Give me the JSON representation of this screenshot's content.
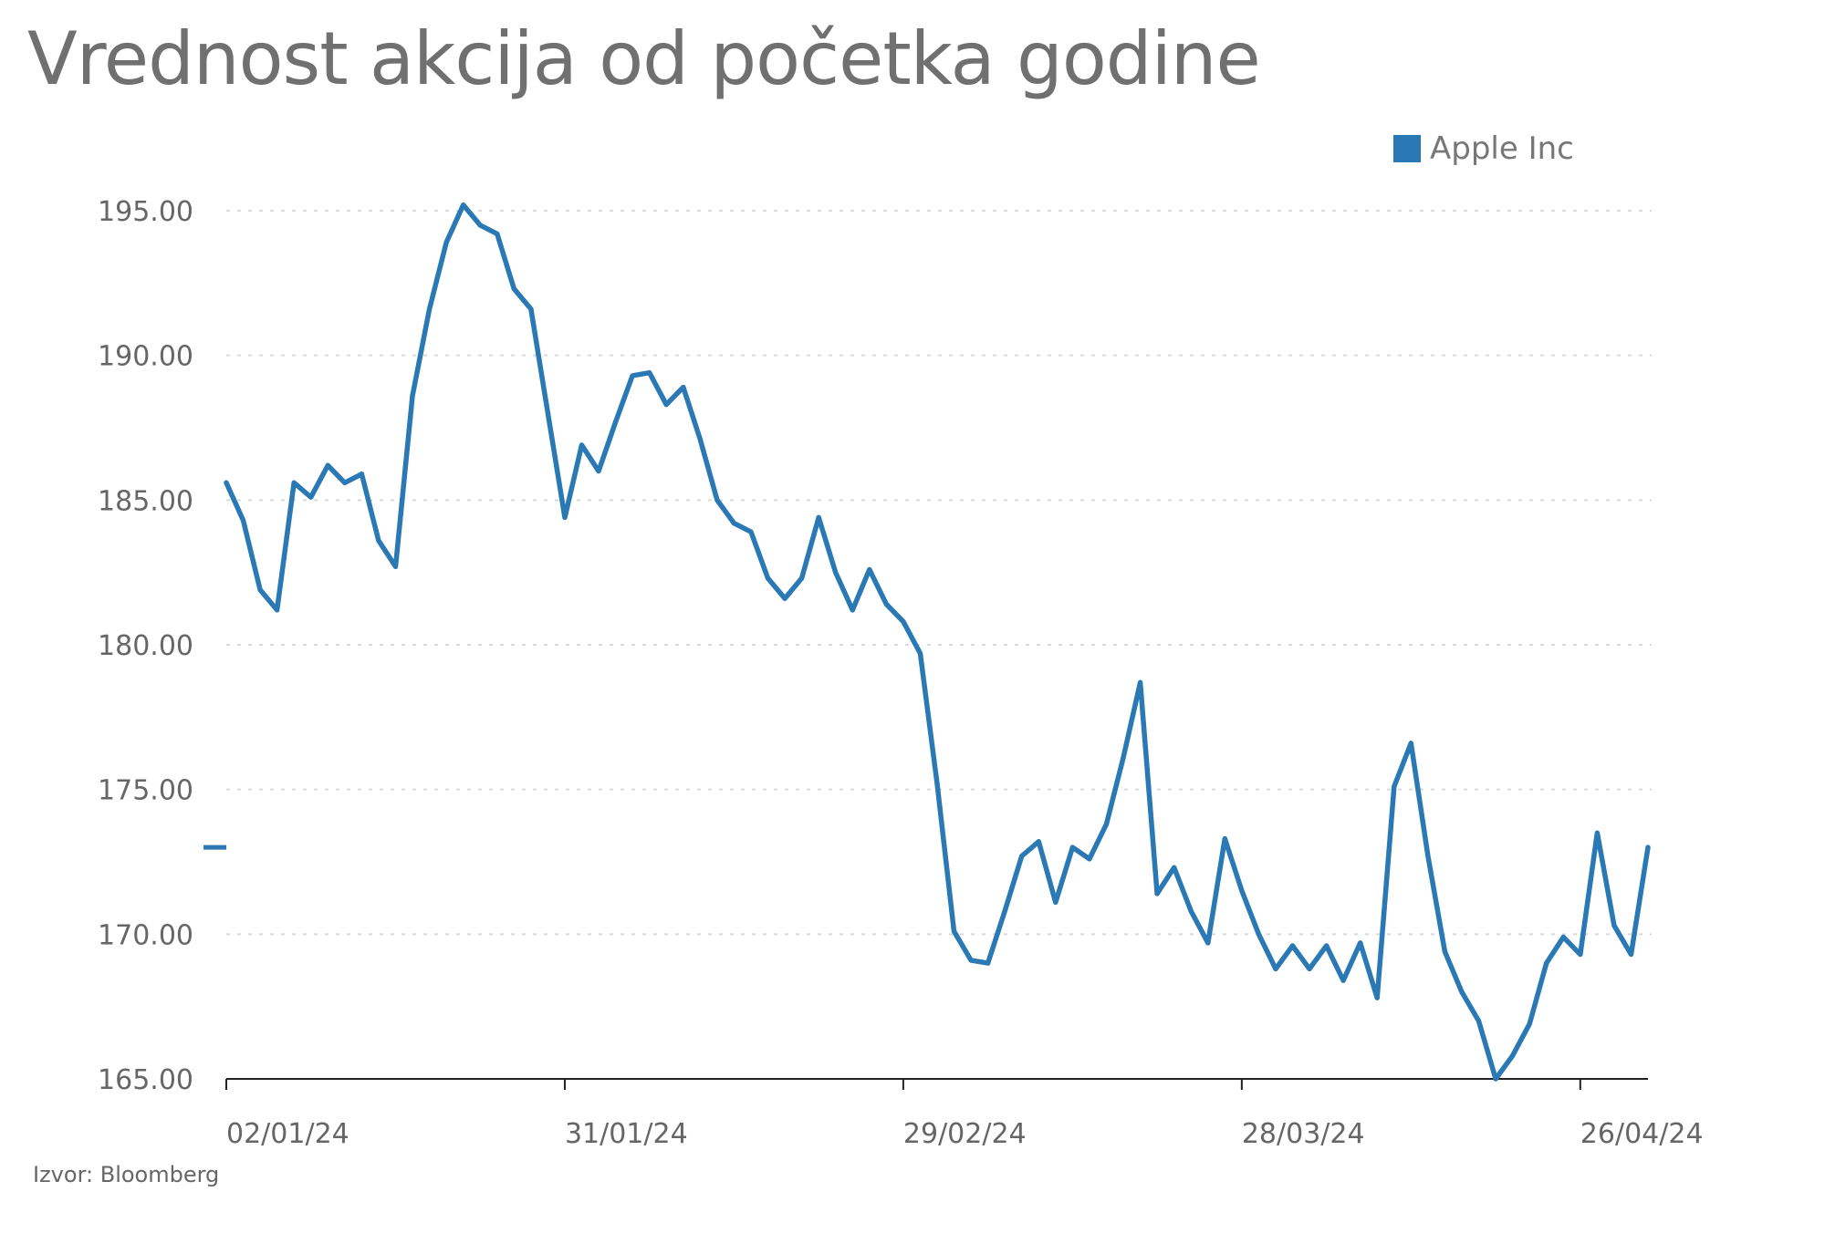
{
  "title": "Vrednost akcija od početka godine",
  "source": "Izvor: Bloomberg",
  "legend": {
    "label": "Apple Inc",
    "color": "#2a79b5"
  },
  "chart_data": {
    "type": "line",
    "title": "Vrednost akcija od početka godine",
    "xlabel": "",
    "ylabel": "",
    "ylim": [
      165,
      195
    ],
    "yticks": [
      "195.00",
      "190.00",
      "185.00",
      "180.00",
      "175.00",
      "170.00",
      "165.00"
    ],
    "ytick_values": [
      195,
      190,
      185,
      180,
      175,
      170,
      165
    ],
    "xticks": [
      {
        "label": "02/01/24",
        "index": 0
      },
      {
        "label": "31/01/24",
        "index": 20
      },
      {
        "label": "29/02/24",
        "index": 40
      },
      {
        "label": "28/03/24",
        "index": 60
      },
      {
        "label": "26/04/24",
        "index": 80
      }
    ],
    "grid": true,
    "legend_position": "top-right",
    "last_value_marker": 173.0,
    "series": [
      {
        "name": "Apple Inc",
        "color": "#2a79b5",
        "values": [
          185.6,
          184.3,
          181.9,
          181.2,
          185.6,
          185.1,
          186.2,
          185.6,
          185.9,
          183.6,
          182.7,
          188.6,
          191.6,
          193.9,
          195.2,
          194.5,
          194.2,
          192.3,
          191.6,
          188.0,
          184.4,
          186.9,
          186.0,
          187.7,
          189.3,
          189.4,
          188.3,
          188.9,
          187.1,
          185.0,
          184.2,
          183.9,
          182.3,
          181.6,
          182.3,
          184.4,
          182.5,
          181.2,
          182.6,
          181.4,
          180.8,
          179.7,
          175.2,
          170.1,
          169.1,
          169.0,
          170.8,
          172.7,
          173.2,
          171.1,
          173.0,
          172.6,
          173.8,
          176.1,
          178.7,
          171.4,
          172.3,
          170.8,
          169.7,
          173.3,
          171.5,
          170.0,
          168.8,
          169.6,
          168.8,
          169.6,
          168.4,
          169.7,
          167.8,
          175.1,
          176.6,
          172.7,
          169.4,
          168.0,
          167.0,
          165.0,
          165.8,
          166.9,
          169.0,
          169.9,
          169.3,
          173.5,
          170.3,
          169.3,
          173.0
        ]
      }
    ]
  }
}
